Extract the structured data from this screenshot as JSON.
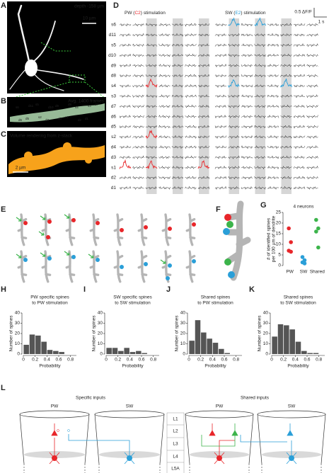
{
  "A": {
    "label": "A",
    "depth": "depth -158 µm",
    "scale_bar": "10 µm"
  },
  "B": {
    "label": "B",
    "title": "Avg. 1400 frames"
  },
  "C": {
    "label": "C",
    "title": "Volume rendering from z-stack",
    "scale_bar": "2 µm"
  },
  "D": {
    "label": "D",
    "pw_title": [
      "PW (",
      "C2",
      ") stimulation"
    ],
    "sw_title": [
      "SW (",
      "E2",
      ") stimulation"
    ],
    "scale_y": "0.5 ΔF/F",
    "scale_x": "1 s",
    "rows": [
      "s6",
      "d11",
      "s5",
      "d10",
      "d9",
      "d8",
      "s4",
      "s3",
      "d7",
      "d6",
      "d5",
      "s2",
      "d4",
      "d3",
      "s1",
      "d2",
      "d1"
    ]
  },
  "E": {
    "label": "E"
  },
  "F": {
    "label": "F"
  },
  "L": {
    "label": "L",
    "left_title": "Specific inputs",
    "right_title": "Shared inputs",
    "pw": "PW",
    "sw": "SW",
    "layers": [
      "L1",
      "L2",
      "L3",
      "L4",
      "L5A"
    ]
  },
  "chart_data": [
    {
      "type": "strip",
      "label": "G",
      "title": "4 neurons",
      "ylabel": [
        "# of identified spines",
        "per 100 µm of dendrite"
      ],
      "categories": [
        "PW",
        "SW",
        "Shared"
      ],
      "values": [
        [
          17.5,
          11,
          7,
          6.5
        ],
        [
          4,
          2.5,
          1.5,
          1
        ],
        [
          21.5,
          17.5,
          16,
          8.5
        ]
      ],
      "colors": [
        "#e8262a",
        "#2a9fd8",
        "#3cb44b"
      ],
      "ylim": [
        0,
        25
      ],
      "yticks": [
        0,
        5,
        10,
        15,
        20,
        25
      ]
    },
    {
      "type": "histogram",
      "label": "H",
      "title": [
        "PW specific spines",
        "to PW stimulation"
      ],
      "xlabel": "Probability",
      "ylabel": "Number of spines",
      "color": "#555555",
      "bins": [
        0,
        0.1,
        0.2,
        0.3,
        0.4,
        0.5,
        0.6,
        0.7,
        0.8
      ],
      "counts": [
        9,
        19,
        18,
        12,
        4,
        3,
        2,
        0
      ],
      "xlim": [
        0,
        0.9
      ],
      "xticks": [
        0,
        0.2,
        0.4,
        0.6,
        0.8
      ],
      "ylim": [
        0,
        40
      ],
      "yticks": [
        0,
        10,
        20,
        30,
        40
      ]
    },
    {
      "type": "histogram",
      "label": "I",
      "title": [
        "SW specific spines",
        "to SW stimulation"
      ],
      "xlabel": "Probability",
      "ylabel": "Number of spines",
      "color": "#555555",
      "bins": [
        0,
        0.1,
        0.2,
        0.3,
        0.4,
        0.5,
        0.6,
        0.7,
        0.8
      ],
      "counts": [
        6,
        6,
        3,
        6,
        2,
        3,
        1,
        0
      ],
      "xlim": [
        0,
        0.9
      ],
      "xticks": [
        0,
        0.2,
        0.4,
        0.6,
        0.8
      ],
      "ylim": [
        0,
        40
      ],
      "yticks": [
        0,
        10,
        20,
        30,
        40
      ]
    },
    {
      "type": "histogram",
      "label": "J",
      "title": [
        "Shared spines",
        "to PW stimulation"
      ],
      "xlabel": "Probability",
      "ylabel": "Number of spines",
      "color": "#555555",
      "bins": [
        0,
        0.1,
        0.2,
        0.3,
        0.4,
        0.5,
        0.6,
        0.7,
        0.8
      ],
      "counts": [
        13,
        33,
        21,
        15,
        11,
        5,
        1,
        0
      ],
      "xlim": [
        0,
        0.9
      ],
      "xticks": [
        0,
        0.2,
        0.4,
        0.6,
        0.8
      ],
      "ylim": [
        0,
        40
      ],
      "yticks": [
        0,
        10,
        20,
        30,
        40
      ]
    },
    {
      "type": "histogram",
      "label": "K",
      "title": [
        "Shared spines",
        "to SW stimulation"
      ],
      "xlabel": "Probability",
      "ylabel": "Number of spines",
      "color": "#555555",
      "bins": [
        0,
        0.1,
        0.2,
        0.3,
        0.4,
        0.5,
        0.6,
        0.7,
        0.8
      ],
      "counts": [
        17,
        29,
        28,
        24,
        12,
        3,
        1,
        1
      ],
      "xlim": [
        0,
        0.9
      ],
      "xticks": [
        0,
        0.2,
        0.4,
        0.6,
        0.8
      ],
      "ylim": [
        0,
        40
      ],
      "yticks": [
        0,
        10,
        20,
        30,
        40
      ]
    }
  ]
}
